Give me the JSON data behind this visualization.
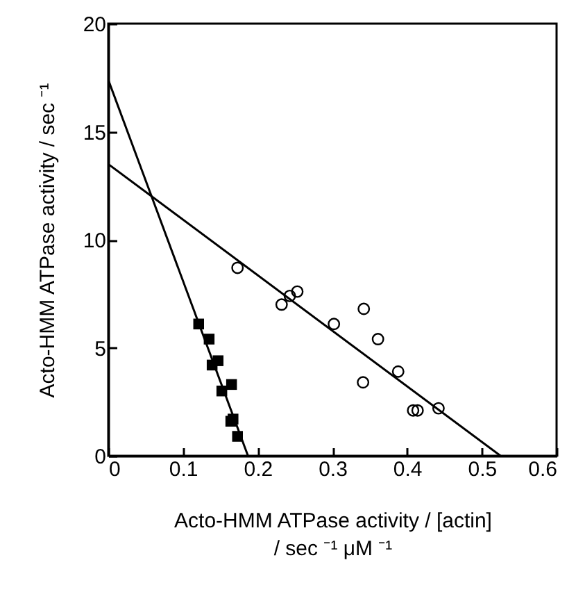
{
  "chart_data": {
    "type": "scatter",
    "xlabel": [
      "Acto-HMM ATPase activity / [actin]",
      "/ sec ⁻¹ μM ⁻¹"
    ],
    "ylabel": "Acto-HMM ATPase activity / sec ⁻¹",
    "xlim": [
      0,
      0.6
    ],
    "xticks": [
      0,
      0.1,
      0.2,
      0.3,
      0.4,
      0.5,
      0.6
    ],
    "ylim": [
      0,
      20
    ],
    "yticks": [
      0,
      5,
      10,
      15,
      20
    ],
    "grid": false,
    "series": [
      {
        "marker": "square",
        "color": "#000000",
        "x": [
          0.121,
          0.135,
          0.139,
          0.147,
          0.152,
          0.165,
          0.164,
          0.167,
          0.173
        ],
        "values": [
          6.1,
          5.4,
          4.2,
          4.4,
          3.0,
          3.3,
          1.6,
          1.7,
          0.9
        ]
      },
      {
        "marker": "circle",
        "color": "#000000",
        "x": [
          0.173,
          0.232,
          0.243,
          0.253,
          0.302,
          0.342,
          0.361,
          0.341,
          0.388,
          0.408,
          0.414,
          0.442
        ],
        "values": [
          8.7,
          7.0,
          7.4,
          7.6,
          6.1,
          6.8,
          5.4,
          3.4,
          3.9,
          2.1,
          2.1,
          2.2
        ]
      },
      {
        "type": "line",
        "marker": "none",
        "line_style": "solid",
        "color": "#000000",
        "x": [
          0,
          0.187
        ],
        "values": [
          17.4,
          0
        ]
      },
      {
        "type": "line",
        "marker": "none",
        "line_style": "solid",
        "color": "#000000",
        "x": [
          0,
          0.525
        ],
        "values": [
          13.5,
          0
        ]
      }
    ]
  }
}
